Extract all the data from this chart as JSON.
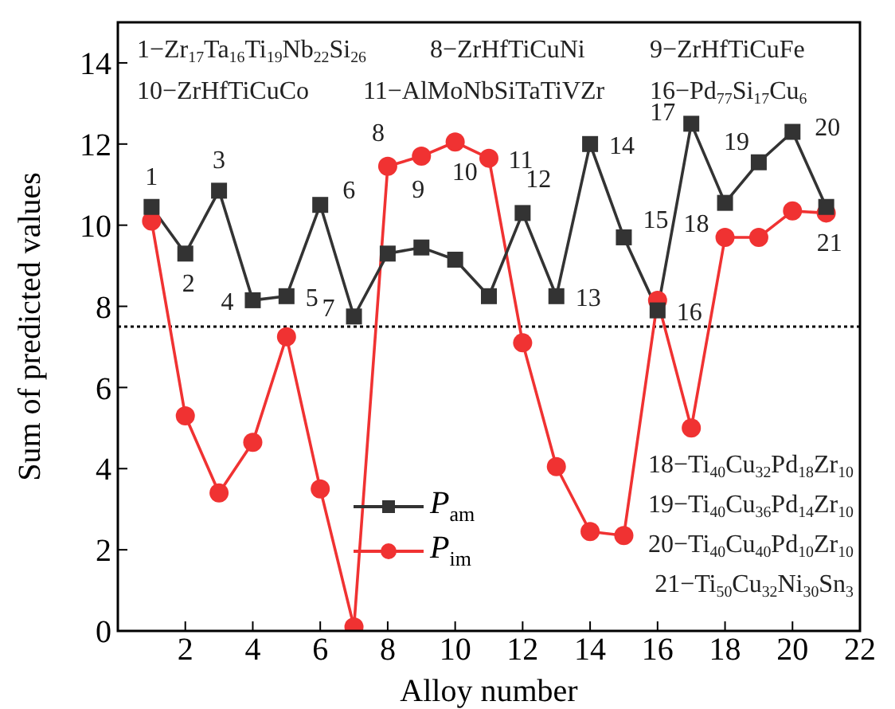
{
  "chart_data": {
    "type": "line",
    "xlabel": "Alloy number",
    "ylabel": "Sum of predicted values",
    "x": [
      1,
      2,
      3,
      4,
      5,
      6,
      7,
      8,
      9,
      10,
      11,
      12,
      13,
      14,
      15,
      16,
      17,
      18,
      19,
      20,
      21
    ],
    "series": [
      {
        "name": "P$_{am}$",
        "color": "#333333",
        "marker": "square",
        "values": [
          10.45,
          9.3,
          10.85,
          8.15,
          8.25,
          10.5,
          7.75,
          9.3,
          9.45,
          9.15,
          8.25,
          10.3,
          8.25,
          12.0,
          9.7,
          7.9,
          12.5,
          10.55,
          11.55,
          12.3,
          10.45
        ]
      },
      {
        "name": "P$_{im}$",
        "color": "#f03232",
        "marker": "circle",
        "values": [
          10.1,
          5.3,
          3.4,
          4.65,
          7.25,
          3.5,
          0.1,
          11.45,
          11.7,
          12.05,
          11.65,
          7.1,
          4.05,
          2.45,
          2.35,
          8.15,
          5.0,
          9.7,
          9.7,
          10.35,
          10.3
        ]
      }
    ],
    "xlim": [
      0,
      22
    ],
    "xticks": [
      2,
      4,
      6,
      8,
      10,
      12,
      14,
      16,
      18,
      20,
      22
    ],
    "ylim": [
      0,
      15
    ],
    "yticks": [
      0,
      2,
      4,
      6,
      8,
      10,
      12,
      14
    ],
    "ref_lines": [
      {
        "axis": "y",
        "value": 7.5,
        "color": "#000000",
        "line_style": "dotted"
      }
    ],
    "legend": "bottom",
    "line_style": "solid",
    "grid": false,
    "annotations": [
      "1−Zr$_{17}$Ta$_{16}$Ti$_{19}$Nb$_{22}$Si$_{26}$",
      "8−ZrHfTiCuNi",
      "9−ZrHfTiCuFe",
      "10−ZrHfTiCuCo",
      "11−AlMoNbSiTaTiVZr",
      "16−Pd$_{77}$Si$_{17}$Cu$_{6}$",
      "18−Ti$_{40}$Cu$_{32}$Pd$_{18}$Zr$_{10}$",
      "19−Ti$_{40}$Cu$_{36}$Pd$_{14}$Zr$_{10}$",
      "20−Ti$_{40}$Cu$_{40}$Pd$_{10}$Zr$_{10}$",
      "21−Ti$_{50}$Cu$_{32}$Ni$_{30}$Sn$_{3}$",
      {
        "text": "1",
        "x": 1,
        "y": 10.45
      },
      {
        "text": "2",
        "x": 2,
        "y": 9.3
      },
      {
        "text": "3",
        "x": 3,
        "y": 10.85
      },
      {
        "text": "4",
        "x": 4,
        "y": 8.15
      },
      {
        "text": "5",
        "x": 5,
        "y": 8.25
      },
      {
        "text": "6",
        "x": 6,
        "y": 10.5
      },
      {
        "text": "7",
        "x": 7,
        "y": 7.75
      },
      {
        "text": "8",
        "x": 8,
        "y": 11.45
      },
      {
        "text": "9",
        "x": 9,
        "y": 11.7
      },
      {
        "text": "10",
        "x": 10,
        "y": 12.05
      },
      {
        "text": "11",
        "x": 11,
        "y": 11.65
      },
      {
        "text": "12",
        "x": 12,
        "y": 10.3
      },
      {
        "text": "13",
        "x": 13,
        "y": 8.25
      },
      {
        "text": "14",
        "x": 14,
        "y": 12.0
      },
      {
        "text": "15",
        "x": 15,
        "y": 9.7
      },
      {
        "text": "16",
        "x": 16,
        "y": 7.9
      },
      {
        "text": "17",
        "x": 17,
        "y": 12.5
      },
      {
        "text": "18",
        "x": 18,
        "y": 10.55
      },
      {
        "text": "19",
        "x": 19,
        "y": 11.55
      },
      {
        "text": "20",
        "x": 20,
        "y": 12.3
      },
      {
        "text": "21",
        "x": 21,
        "y": 10.3
      }
    ]
  }
}
